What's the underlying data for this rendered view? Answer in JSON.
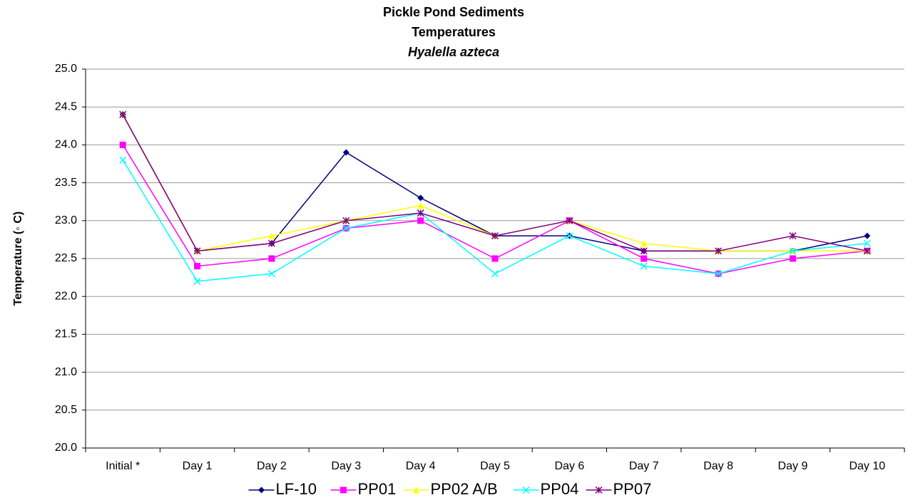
{
  "chart_data": {
    "type": "line",
    "title": "Pickle Pond Sediments",
    "subtitle": "Temperatures",
    "subtitle2": "Hyalella azteca",
    "y_label": "Temperature (◦ C)",
    "categories": [
      "Initial *",
      "Day 1",
      "Day 2",
      "Day 3",
      "Day 4",
      "Day 5",
      "Day 6",
      "Day 7",
      "Day 8",
      "Day 9",
      "Day 10"
    ],
    "series": [
      {
        "name": "LF-10",
        "color": "#000080",
        "marker": "diamond",
        "values": [
          24.4,
          22.6,
          22.7,
          23.9,
          23.3,
          22.8,
          22.8,
          22.6,
          22.6,
          22.6,
          22.8
        ]
      },
      {
        "name": "PP01",
        "color": "#ff00ff",
        "marker": "square",
        "values": [
          24.0,
          22.4,
          22.5,
          22.9,
          23.0,
          22.5,
          23.0,
          22.5,
          22.3,
          22.5,
          22.6
        ]
      },
      {
        "name": "PP02 A/B",
        "color": "#ffff00",
        "marker": "triangle",
        "values": [
          24.4,
          22.6,
          22.8,
          23.0,
          23.2,
          22.8,
          23.0,
          22.7,
          22.6,
          22.6,
          22.6
        ]
      },
      {
        "name": "PP04",
        "color": "#00ffff",
        "marker": "x",
        "values": [
          23.8,
          22.2,
          22.3,
          22.9,
          23.1,
          22.3,
          22.8,
          22.4,
          22.3,
          22.6,
          22.7
        ]
      },
      {
        "name": "PP07",
        "color": "#800080",
        "marker": "star",
        "values": [
          24.4,
          22.6,
          22.7,
          23.0,
          23.1,
          22.8,
          23.0,
          22.6,
          22.6,
          22.8,
          22.6
        ]
      }
    ],
    "ylim": [
      20,
      25
    ],
    "yticks": [
      {
        "value": 20,
        "label": "20.0"
      },
      20.5,
      {
        "value": 21,
        "label": "21.0"
      },
      21.5,
      {
        "value": 22,
        "label": "22.0"
      },
      22.5,
      {
        "value": 23,
        "label": "23.0"
      },
      23.5,
      {
        "value": 24,
        "label": "24.0"
      },
      24.5,
      {
        "value": 25,
        "label": "25.0"
      }
    ],
    "grid": true,
    "legend": "bottom"
  }
}
